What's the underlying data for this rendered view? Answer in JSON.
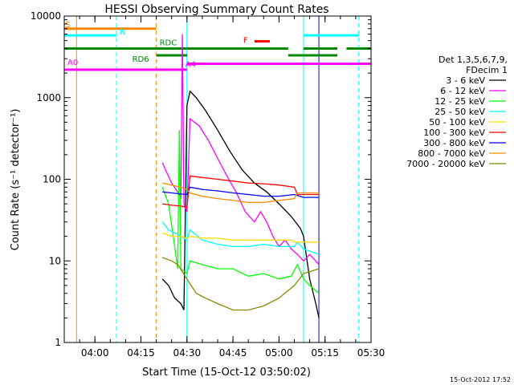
{
  "chart_data": {
    "type": "line",
    "title": "HESSI Observing Summary Count Rates",
    "xlabel": "Start Time (15-Oct-12 03:50:02)",
    "ylabel": "Count Rate (s⁻¹ detector⁻¹)",
    "xlim": [
      "03:50",
      "05:30"
    ],
    "ylim": [
      1,
      10000
    ],
    "yscale": "log",
    "x_ticks": [
      "04:00",
      "04:15",
      "04:30",
      "04:45",
      "05:00",
      "05:15",
      "05:30"
    ],
    "y_ticks": [
      "1",
      "10",
      "100",
      "1000",
      "10000"
    ],
    "timestamp": "15-Oct-2012 17:52",
    "legend": {
      "position": "right",
      "header": [
        "Det 1,3,5,6,7,9,",
        "FDecim 1"
      ],
      "entries": [
        {
          "name": "3 - 6 keV",
          "color": "#000000"
        },
        {
          "name": "6 - 12 keV",
          "color": "#ff00ff"
        },
        {
          "name": "12 - 25 keV",
          "color": "#00ff00"
        },
        {
          "name": "25 - 50 keV",
          "color": "#00ffff"
        },
        {
          "name": "50 - 100 keV",
          "color": "#ffdd00"
        },
        {
          "name": "100 - 300 keV",
          "color": "#ff0000"
        },
        {
          "name": "300 - 800 keV",
          "color": "#0000ff"
        },
        {
          "name": "800 - 7000 keV",
          "color": "#ff8800"
        },
        {
          "name": "7000 - 20000 keV",
          "color": "#888800"
        }
      ]
    },
    "flag_bars": [
      {
        "label": "S",
        "color": "#ff8800",
        "y": 7000,
        "segments": [
          [
            "03:50",
            "04:20"
          ]
        ]
      },
      {
        "label": "N",
        "color": "#00ffff",
        "y": 5800,
        "segments": [
          [
            "03:50",
            "04:07"
          ],
          [
            "05:08",
            "05:26"
          ]
        ]
      },
      {
        "label": "F",
        "color": "#ff0000",
        "y": 4900,
        "segments": [
          [
            "04:52",
            "04:57"
          ]
        ]
      },
      {
        "label": "RDC",
        "color": "#008800",
        "y": 4000,
        "segments": [
          [
            "03:50",
            "04:20"
          ],
          [
            "04:20",
            "04:30"
          ],
          [
            "04:30",
            "05:03"
          ],
          [
            "05:08",
            "05:19"
          ],
          [
            "05:22",
            "05:30"
          ]
        ]
      },
      {
        "label": "RD6",
        "color": "#008800",
        "y": 3300,
        "segments": [
          [
            "04:20",
            "04:30"
          ],
          [
            "05:03",
            "05:19"
          ]
        ]
      },
      {
        "label": "A0",
        "color": "#ff00ff",
        "y": 2200,
        "segments": [
          [
            "03:50",
            "04:30"
          ]
        ]
      },
      {
        "label": "A4",
        "color": "#ff00ff",
        "y": 2600,
        "segments": [
          [
            "04:30",
            "05:30"
          ]
        ]
      }
    ],
    "vlines": [
      {
        "x": "03:50",
        "color": "#00ffff",
        "style": "solid"
      },
      {
        "x": "03:54",
        "color": "#ff8800",
        "style": "solid"
      },
      {
        "x": "04:07",
        "color": "#00ffff",
        "style": "dashed"
      },
      {
        "x": "04:20",
        "color": "#ff8800",
        "style": "dashed"
      },
      {
        "x": "04:30",
        "color": "#00ffff",
        "style": "solid"
      },
      {
        "x": "05:08",
        "color": "#00ffff",
        "style": "solid"
      },
      {
        "x": "05:13",
        "color": "#0000ff",
        "style": "solid"
      },
      {
        "x": "05:26",
        "color": "#00ffff",
        "style": "dashed"
      }
    ],
    "series": [
      {
        "name": "3 - 6 keV",
        "color": "#000000",
        "x": [
          "04:22",
          "04:24",
          "04:26",
          "04:28",
          "04:29",
          "04:30",
          "04:31",
          "04:33",
          "04:36",
          "04:40",
          "04:44",
          "04:48",
          "04:52",
          "04:56",
          "05:00",
          "05:04",
          "05:07",
          "05:08",
          "05:10",
          "05:12",
          "05:13"
        ],
        "values": [
          6,
          5,
          3.5,
          3,
          2.5,
          800,
          1200,
          1000,
          700,
          400,
          220,
          130,
          90,
          70,
          50,
          35,
          25,
          20,
          6,
          3,
          2
        ]
      },
      {
        "name": "6 - 12 keV",
        "color": "#ff00ff",
        "x": [
          "04:22",
          "04:23",
          "04:25",
          "04:27",
          "04:28",
          "04:28.5",
          "04:29",
          "04:30",
          "04:31",
          "04:34",
          "04:37",
          "04:40",
          "04:43",
          "04:46",
          "04:49",
          "04:52",
          "04:54",
          "04:56",
          "04:58",
          "05:00",
          "05:02",
          "05:04",
          "05:06",
          "05:08",
          "05:10",
          "05:12",
          "05:13"
        ],
        "values": [
          160,
          130,
          90,
          70,
          60,
          6000,
          50,
          40,
          550,
          450,
          300,
          180,
          110,
          70,
          40,
          30,
          40,
          30,
          20,
          15,
          18,
          14,
          12,
          10,
          12,
          10,
          9
        ]
      },
      {
        "name": "12 - 25 keV",
        "color": "#00ff00",
        "x": [
          "04:22",
          "04:24",
          "04:26",
          "04:27",
          "04:27.5",
          "04:28",
          "04:30",
          "04:31",
          "04:35",
          "04:40",
          "04:45",
          "04:50",
          "04:55",
          "05:00",
          "05:04",
          "05:06",
          "05:08",
          "05:10",
          "05:13"
        ],
        "values": [
          80,
          50,
          15,
          8,
          400,
          8,
          7,
          10,
          9,
          8,
          8,
          6.5,
          7,
          6,
          6.5,
          9,
          6,
          5,
          4
        ]
      },
      {
        "name": "25 - 50 keV",
        "color": "#00ffff",
        "x": [
          "04:22",
          "04:24",
          "04:26",
          "04:28",
          "04:30",
          "04:31",
          "04:35",
          "04:40",
          "04:45",
          "04:50",
          "04:55",
          "05:00",
          "05:05",
          "05:06",
          "05:08",
          "05:13"
        ],
        "values": [
          30,
          24,
          22,
          20,
          18,
          24,
          18,
          16,
          15,
          15,
          16,
          15,
          15,
          17,
          14,
          12
        ]
      },
      {
        "name": "50 - 100 keV",
        "color": "#ffdd00",
        "x": [
          "04:22",
          "04:25",
          "04:28",
          "04:30",
          "04:31",
          "04:35",
          "04:40",
          "04:45",
          "04:50",
          "04:55",
          "05:00",
          "05:04",
          "05:05",
          "05:08",
          "05:10",
          "05:13"
        ],
        "values": [
          22,
          20,
          20,
          19,
          20,
          19,
          19,
          18,
          18,
          18,
          18,
          18,
          17,
          17,
          17,
          17
        ]
      },
      {
        "name": "100 - 300 keV",
        "color": "#ff0000",
        "x": [
          "04:22",
          "04:25",
          "04:28",
          "04:30",
          "04:31",
          "04:35",
          "04:40",
          "04:45",
          "04:50",
          "04:55",
          "05:00",
          "05:05",
          "05:06",
          "05:10",
          "05:13"
        ],
        "values": [
          50,
          48,
          47,
          45,
          110,
          105,
          100,
          95,
          90,
          88,
          85,
          80,
          65,
          65,
          65
        ]
      },
      {
        "name": "300 - 800 keV",
        "color": "#0000ff",
        "x": [
          "04:22",
          "04:25",
          "04:28",
          "04:30",
          "04:31",
          "04:35",
          "04:40",
          "04:45",
          "04:50",
          "04:55",
          "05:00",
          "05:05",
          "05:08",
          "05:13"
        ],
        "values": [
          70,
          68,
          66,
          65,
          80,
          75,
          72,
          68,
          65,
          62,
          62,
          65,
          60,
          60
        ]
      },
      {
        "name": "800 - 7000 keV",
        "color": "#ff8800",
        "x": [
          "04:22",
          "04:25",
          "04:28",
          "04:30",
          "04:31",
          "04:35",
          "04:40",
          "04:45",
          "04:50",
          "04:55",
          "05:00",
          "05:05",
          "05:06",
          "05:10",
          "05:13"
        ],
        "values": [
          90,
          85,
          80,
          75,
          68,
          62,
          58,
          55,
          52,
          52,
          55,
          58,
          68,
          68,
          68
        ]
      },
      {
        "name": "7000 - 20000 keV",
        "color": "#888800",
        "x": [
          "04:22",
          "04:25",
          "04:27",
          "04:30",
          "04:33",
          "04:36",
          "04:40",
          "04:45",
          "04:50",
          "04:55",
          "05:00",
          "05:05",
          "05:08",
          "05:13"
        ],
        "values": [
          11,
          10,
          9,
          6,
          4,
          3.5,
          3,
          2.5,
          2.5,
          2.8,
          3.5,
          5,
          7,
          8
        ]
      }
    ]
  }
}
